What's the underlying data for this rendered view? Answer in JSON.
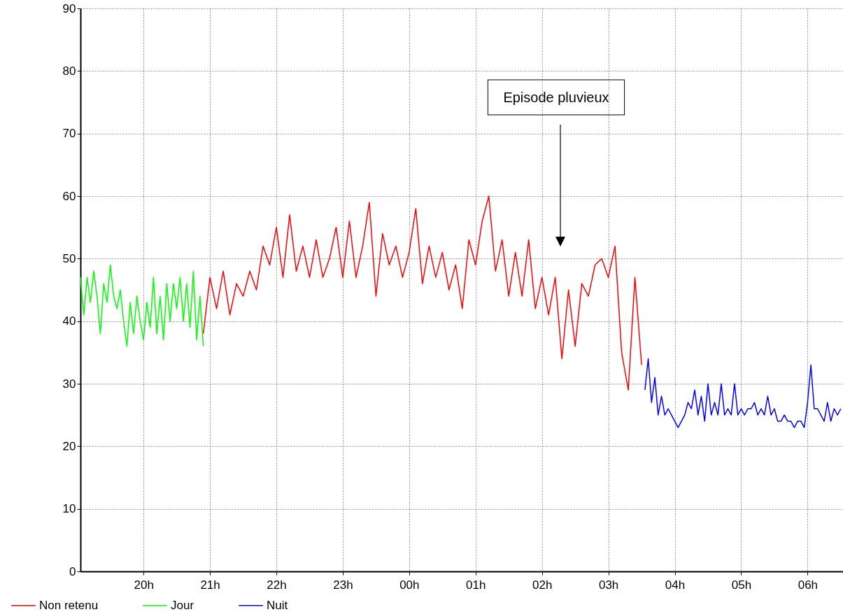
{
  "chart_data": {
    "type": "line",
    "series": [
      {
        "name": "Non retenu",
        "color": "#ff0000",
        "x": [
          "2000-01-01T20:54",
          "2000-01-01T21:00",
          "2000-01-01T21:06",
          "2000-01-01T21:12",
          "2000-01-01T21:18",
          "2000-01-01T21:24",
          "2000-01-01T21:30",
          "2000-01-01T21:36",
          "2000-01-01T21:42",
          "2000-01-01T21:48",
          "2000-01-01T21:54",
          "2000-01-01T22:00",
          "2000-01-01T22:06",
          "2000-01-01T22:12",
          "2000-01-01T22:18",
          "2000-01-01T22:24",
          "2000-01-01T22:30",
          "2000-01-01T22:36",
          "2000-01-01T22:42",
          "2000-01-01T22:48",
          "2000-01-01T22:54",
          "2000-01-01T23:00",
          "2000-01-01T23:06",
          "2000-01-01T23:12",
          "2000-01-01T23:18",
          "2000-01-01T23:24",
          "2000-01-01T23:30",
          "2000-01-01T23:36",
          "2000-01-01T23:42",
          "2000-01-01T23:48",
          "2000-01-01T23:54",
          "2000-01-02T00:00",
          "2000-01-02T00:06",
          "2000-01-02T00:12",
          "2000-01-02T00:18",
          "2000-01-02T00:24",
          "2000-01-02T00:30",
          "2000-01-02T00:36",
          "2000-01-02T00:42",
          "2000-01-02T00:48",
          "2000-01-02T00:54",
          "2000-01-02T01:00",
          "2000-01-02T01:06",
          "2000-01-02T01:12",
          "2000-01-02T01:18",
          "2000-01-02T01:24",
          "2000-01-02T01:30",
          "2000-01-02T01:36",
          "2000-01-02T01:42",
          "2000-01-02T01:48",
          "2000-01-02T01:54",
          "2000-01-02T02:00",
          "2000-01-02T02:06",
          "2000-01-02T02:12",
          "2000-01-02T02:18",
          "2000-01-02T02:24",
          "2000-01-02T02:30",
          "2000-01-02T02:36",
          "2000-01-02T02:42",
          "2000-01-02T02:48",
          "2000-01-02T02:54",
          "2000-01-02T03:00",
          "2000-01-02T03:06",
          "2000-01-02T03:12",
          "2000-01-02T03:18",
          "2000-01-02T03:24",
          "2000-01-02T03:30"
        ],
        "values": [
          38,
          47,
          42,
          48,
          41,
          46,
          44,
          48,
          45,
          52,
          49,
          55,
          47,
          57,
          48,
          52,
          47,
          53,
          47,
          50,
          55,
          47,
          56,
          47,
          52,
          59,
          44,
          54,
          49,
          52,
          47,
          51,
          58,
          46,
          52,
          47,
          51,
          45,
          49,
          42,
          53,
          49,
          56,
          60,
          48,
          53,
          44,
          51,
          44,
          53,
          42,
          47,
          41,
          47,
          34,
          45,
          36,
          46,
          44,
          49,
          50,
          47,
          52,
          35,
          29,
          47,
          33
        ]
      },
      {
        "name": "Jour",
        "color": "#00ff00",
        "x": [
          "2000-01-01T19:03",
          "2000-01-01T19:06",
          "2000-01-01T19:09",
          "2000-01-01T19:12",
          "2000-01-01T19:15",
          "2000-01-01T19:18",
          "2000-01-01T19:21",
          "2000-01-01T19:24",
          "2000-01-01T19:27",
          "2000-01-01T19:30",
          "2000-01-01T19:33",
          "2000-01-01T19:36",
          "2000-01-01T19:39",
          "2000-01-01T19:42",
          "2000-01-01T19:45",
          "2000-01-01T19:48",
          "2000-01-01T19:51",
          "2000-01-01T19:54",
          "2000-01-01T19:57",
          "2000-01-01T20:00",
          "2000-01-01T20:03",
          "2000-01-01T20:06",
          "2000-01-01T20:09",
          "2000-01-01T20:12",
          "2000-01-01T20:15",
          "2000-01-01T20:18",
          "2000-01-01T20:21",
          "2000-01-01T20:24",
          "2000-01-01T20:27",
          "2000-01-01T20:30",
          "2000-01-01T20:33",
          "2000-01-01T20:36",
          "2000-01-01T20:39",
          "2000-01-01T20:42",
          "2000-01-01T20:45",
          "2000-01-01T20:48",
          "2000-01-01T20:51",
          "2000-01-01T20:54"
        ],
        "values": [
          47,
          41,
          47,
          43,
          48,
          44,
          38,
          46,
          43,
          49,
          44,
          42,
          45,
          40,
          36,
          43,
          38,
          44,
          40,
          37,
          43,
          39,
          47,
          38,
          44,
          37,
          46,
          40,
          46,
          42,
          47,
          40,
          46,
          39,
          48,
          37,
          44,
          36
        ]
      },
      {
        "name": "Nuit",
        "color": "#0000ff",
        "x": [
          "2000-01-02T03:33",
          "2000-01-02T03:36",
          "2000-01-02T03:39",
          "2000-01-02T03:42",
          "2000-01-02T03:45",
          "2000-01-02T03:48",
          "2000-01-02T03:51",
          "2000-01-02T03:54",
          "2000-01-02T03:57",
          "2000-01-02T04:00",
          "2000-01-02T04:03",
          "2000-01-02T04:06",
          "2000-01-02T04:09",
          "2000-01-02T04:12",
          "2000-01-02T04:15",
          "2000-01-02T04:18",
          "2000-01-02T04:21",
          "2000-01-02T04:24",
          "2000-01-02T04:27",
          "2000-01-02T04:30",
          "2000-01-02T04:33",
          "2000-01-02T04:36",
          "2000-01-02T04:39",
          "2000-01-02T04:42",
          "2000-01-02T04:45",
          "2000-01-02T04:48",
          "2000-01-02T04:51",
          "2000-01-02T04:54",
          "2000-01-02T04:57",
          "2000-01-02T05:00",
          "2000-01-02T05:03",
          "2000-01-02T05:06",
          "2000-01-02T05:09",
          "2000-01-02T05:12",
          "2000-01-02T05:15",
          "2000-01-02T05:18",
          "2000-01-02T05:21",
          "2000-01-02T05:24",
          "2000-01-02T05:27",
          "2000-01-02T05:30",
          "2000-01-02T05:33",
          "2000-01-02T05:36",
          "2000-01-02T05:39",
          "2000-01-02T05:42",
          "2000-01-02T05:45",
          "2000-01-02T05:48",
          "2000-01-02T05:51",
          "2000-01-02T05:54",
          "2000-01-02T05:57",
          "2000-01-02T06:00",
          "2000-01-02T06:03",
          "2000-01-02T06:06",
          "2000-01-02T06:09",
          "2000-01-02T06:12",
          "2000-01-02T06:15",
          "2000-01-02T06:18",
          "2000-01-02T06:21",
          "2000-01-02T06:24",
          "2000-01-02T06:27",
          "2000-01-02T06:30"
        ],
        "values": [
          29,
          34,
          27,
          31,
          25,
          28,
          25,
          26,
          25,
          24,
          23,
          24,
          25,
          27,
          26,
          29,
          25,
          28,
          24,
          30,
          25,
          27,
          25,
          30,
          25,
          26,
          25,
          30,
          25,
          26,
          25,
          26,
          26,
          27,
          25,
          26,
          25,
          28,
          25,
          26,
          24,
          24,
          25,
          24,
          24,
          23,
          24,
          24,
          23,
          27,
          33,
          26,
          26,
          25,
          24,
          27,
          24,
          26,
          25,
          26
        ]
      }
    ],
    "xlim": [
      "2000-01-01T19:03",
      "2000-01-02T06:32"
    ],
    "xticks": [
      {
        "value": "2000-01-01T20:00",
        "label": "20h"
      },
      {
        "value": "2000-01-01T21:00",
        "label": "21h"
      },
      {
        "value": "2000-01-01T22:00",
        "label": "22h"
      },
      {
        "value": "2000-01-01T23:00",
        "label": "23h"
      },
      {
        "value": "2000-01-02T00:00",
        "label": "00h"
      },
      {
        "value": "2000-01-02T01:00",
        "label": "01h"
      },
      {
        "value": "2000-01-02T02:00",
        "label": "02h"
      },
      {
        "value": "2000-01-02T03:00",
        "label": "03h"
      },
      {
        "value": "2000-01-02T04:00",
        "label": "04h"
      },
      {
        "value": "2000-01-02T05:00",
        "label": "05h"
      },
      {
        "value": "2000-01-02T06:00",
        "label": "06h"
      }
    ],
    "ylim": [
      0,
      90
    ],
    "yticks": [
      0,
      10,
      20,
      30,
      40,
      50,
      60,
      70,
      80,
      90
    ],
    "grid": true,
    "legend": "bottom left",
    "annotations": [
      "Episode pluvieux"
    ]
  }
}
